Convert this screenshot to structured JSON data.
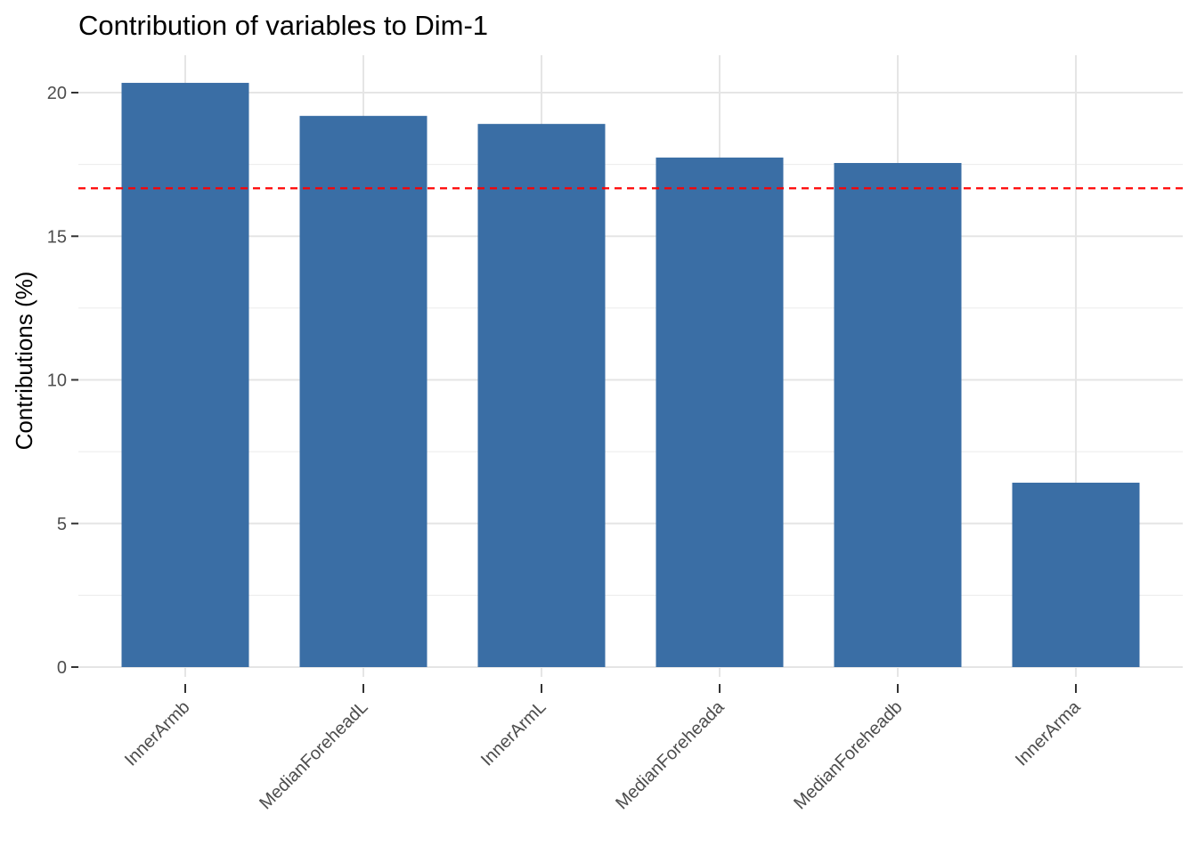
{
  "chart_data": {
    "type": "bar",
    "title": "Contribution of variables to Dim-1",
    "xlabel": "",
    "ylabel": "Contributions (%)",
    "categories": [
      "InnerArmb",
      "MedianForeheadL",
      "InnerArmL",
      "MedianForeheada",
      "MedianForeheadb",
      "InnerArma"
    ],
    "values": [
      20.34,
      19.19,
      18.91,
      17.74,
      17.55,
      6.42
    ],
    "ylim": [
      0,
      21.3
    ],
    "yticks": [
      0,
      5,
      10,
      15,
      20
    ],
    "reference_line": {
      "value": 16.67,
      "color": "#FF0000",
      "style": "dashed"
    },
    "bar_color": "#3A6EA5",
    "grid": true
  }
}
